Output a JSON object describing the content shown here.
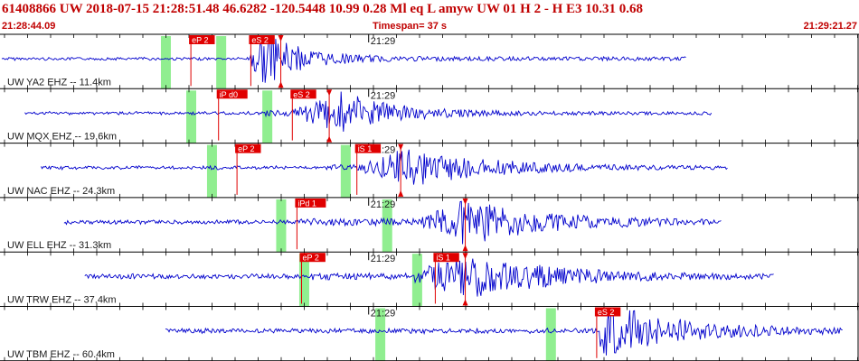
{
  "header": {
    "title": "61408866 UW 2018-07-15 21:28:51.48   46.6282 -120.5448  10.99  0.28 Ml  eq  L amyw     UW 01  H   2  -  H E3   10.31  0.68",
    "start_time": "21:28:44.09",
    "timespan": "Timespan=  37 s",
    "end_time": "21:29:21.27"
  },
  "colors": {
    "waveform": "#0000cc",
    "pick": "#e00000",
    "window": "#90ee90",
    "text_red": "#c00000"
  },
  "traces": [
    {
      "label": "UW YA2 EHZ -- 11.4km",
      "minute_label": "21:29",
      "picks": [
        {
          "label": "eP 2",
          "t": 8.2
        },
        {
          "label": "eS 2",
          "t": 10.8
        },
        {
          "label": "",
          "t": 12.1,
          "marker": true
        }
      ],
      "windows": [
        6.9,
        9.3
      ],
      "wave": {
        "start": 0,
        "end": 29.7,
        "onset": 10.8,
        "peak": 11.4,
        "noise": 0.05,
        "amp": 0.92,
        "decay": 0.6
      }
    },
    {
      "label": "UW MQX EHZ -- 19.6km",
      "minute_label": "21:29",
      "picks": [
        {
          "label": "iP d0",
          "t": 9.4
        },
        {
          "label": "eS 2",
          "t": 12.6
        },
        {
          "label": "",
          "t": 14.2,
          "marker": true
        }
      ],
      "windows": [
        8.0,
        11.3
      ],
      "wave": {
        "start": 1.0,
        "end": 30.8,
        "onset": 11.4,
        "peak": 14.7,
        "noise": 0.05,
        "amp": 0.78,
        "decay": 0.45
      }
    },
    {
      "label": "UW NAC EHZ -- 24.3km",
      "minute_label": "21:29",
      "picks": [
        {
          "label": "eP 2",
          "t": 10.2
        },
        {
          "label": "iS 1",
          "t": 15.4
        },
        {
          "label": "",
          "t": 17.3,
          "marker": true
        }
      ],
      "windows": [
        8.9,
        14.7
      ],
      "wave": {
        "start": 1.7,
        "end": 31.5,
        "onset": 14.0,
        "peak": 17.5,
        "noise": 0.06,
        "amp": 0.75,
        "decay": 0.3
      }
    },
    {
      "label": "UW ELL EHZ -- 31.3km",
      "minute_label": "21:29",
      "picks": [
        {
          "label": "iPd 1",
          "t": 12.8
        },
        {
          "label": "",
          "t": 20.1,
          "marker": true
        }
      ],
      "windows": [
        11.9,
        16.5
      ],
      "wave": {
        "start": 2.7,
        "end": 31.2,
        "onset": 12.8,
        "peak": 20.0,
        "noise": 0.07,
        "amp": 0.85,
        "decay": 0.28
      }
    },
    {
      "label": "UW TRW EHZ -- 37.4km",
      "minute_label": "21:29",
      "picks": [
        {
          "label": "eP 2",
          "t": 13.0
        },
        {
          "label": "iS 1",
          "t": 18.8
        },
        {
          "label": "",
          "t": 20.1,
          "marker": true
        }
      ],
      "windows": [
        12.9,
        17.8
      ],
      "wave": {
        "start": 3.6,
        "end": 33.5,
        "onset": 13.4,
        "peak": 19.8,
        "noise": 0.08,
        "amp": 0.85,
        "decay": 0.25
      }
    },
    {
      "label": "UW TBM EHZ -- 60.4km",
      "minute_label": "21:29",
      "picks": [
        {
          "label": "eS 2",
          "t": 25.8
        }
      ],
      "windows": [
        16.2,
        23.6
      ],
      "wave": {
        "start": 7.1,
        "end": 36.5,
        "onset": 25.9,
        "peak": 26.3,
        "noise": 0.08,
        "amp": 0.95,
        "decay": 0.3
      }
    }
  ],
  "axis": {
    "start_s": 0,
    "end_s": 37.18,
    "minute_tick_s": 15.91
  }
}
